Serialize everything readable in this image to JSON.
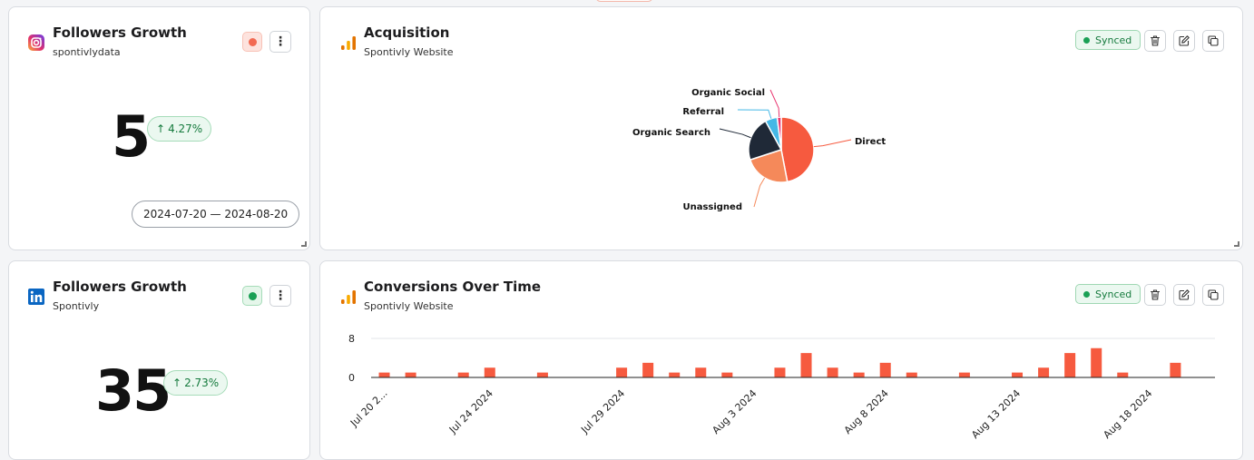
{
  "top_left": {
    "title": "Followers Growth",
    "subtitle": "spontivlydata",
    "platform_icon": "instagram-icon",
    "status_color": "#f26a52",
    "value": "5",
    "trend": "4.27%",
    "trend_arrow": "↑",
    "date_range": "2024-07-20 — 2024-08-20"
  },
  "top_right": {
    "title": "Acquisition",
    "subtitle": "Spontivly Website",
    "platform_icon": "google-analytics-icon",
    "synced_label": "Synced",
    "chart_data": {
      "type": "pie",
      "categories": [
        "Direct",
        "Unassigned",
        "Organic Search",
        "Referral",
        "Organic Social"
      ],
      "values": [
        47,
        23,
        22,
        6,
        2
      ],
      "colors": [
        "#f65a3f",
        "#f5895a",
        "#1f2937",
        "#45b8e6",
        "#e8336e"
      ]
    }
  },
  "bottom_left": {
    "title": "Followers Growth",
    "subtitle": "Spontivly",
    "platform_icon": "linkedin-icon",
    "status_color": "#1aa055",
    "value": "35",
    "trend": "2.73%",
    "trend_arrow": "↑"
  },
  "bottom_right": {
    "title": "Conversions Over Time",
    "subtitle": "Spontivly Website",
    "platform_icon": "google-analytics-icon",
    "synced_label": "Synced",
    "chart_data": {
      "type": "bar",
      "x": [
        "Jul 20 2024",
        "Jul 21 2024",
        "Jul 22 2024",
        "Jul 23 2024",
        "Jul 24 2024",
        "Jul 25 2024",
        "Jul 26 2024",
        "Jul 27 2024",
        "Jul 28 2024",
        "Jul 29 2024",
        "Jul 30 2024",
        "Jul 31 2024",
        "Aug 1 2024",
        "Aug 2 2024",
        "Aug 3 2024",
        "Aug 4 2024",
        "Aug 5 2024",
        "Aug 6 2024",
        "Aug 7 2024",
        "Aug 8 2024",
        "Aug 9 2024",
        "Aug 10 2024",
        "Aug 11 2024",
        "Aug 12 2024",
        "Aug 13 2024",
        "Aug 14 2024",
        "Aug 15 2024",
        "Aug 16 2024",
        "Aug 17 2024",
        "Aug 18 2024",
        "Aug 19 2024",
        "Aug 20 2024"
      ],
      "values": [
        1,
        1,
        0,
        1,
        2,
        0,
        1,
        0,
        0,
        2,
        3,
        1,
        2,
        1,
        0,
        2,
        5,
        2,
        1,
        3,
        1,
        0,
        1,
        0,
        1,
        2,
        5,
        6,
        1,
        0,
        3,
        0
      ],
      "tick_labels": [
        "Jul 20 2...",
        "Jul 24 2024",
        "Jul 29 2024",
        "Aug 3 2024",
        "Aug 8 2024",
        "Aug 13 2024",
        "Aug 18 2024"
      ],
      "tick_index": [
        0,
        4,
        9,
        14,
        19,
        24,
        29
      ],
      "yticks": [
        "8",
        "0"
      ],
      "ylim": [
        0,
        8
      ],
      "color": "#f65a3f"
    }
  }
}
